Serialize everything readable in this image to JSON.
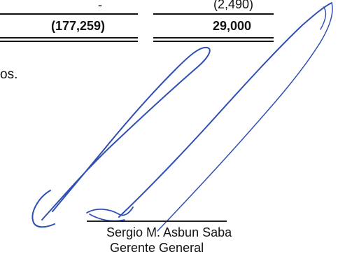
{
  "totals": {
    "column_1": {
      "prior_line": "-",
      "total": "(177,259)"
    },
    "column_2": {
      "prior_line": "(2,490)",
      "total": "29,000"
    }
  },
  "note_fragment": "os.",
  "signatory": {
    "name": "Sergio M. Asbun Saba",
    "title": "Gerente General"
  },
  "signature": {
    "type": "handwritten",
    "ink_color": "#2f4fb4"
  }
}
